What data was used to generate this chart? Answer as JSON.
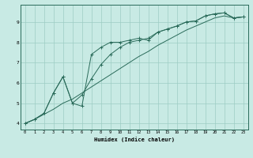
{
  "title": "",
  "xlabel": "Humidex (Indice chaleur)",
  "ylabel": "",
  "bg_color": "#c8eae4",
  "line_color": "#2a6b5a",
  "grid_color": "#9dcdc4",
  "xlim": [
    -0.5,
    23.5
  ],
  "ylim": [
    3.7,
    9.85
  ],
  "xticks": [
    0,
    1,
    2,
    3,
    4,
    5,
    6,
    7,
    8,
    9,
    10,
    11,
    12,
    13,
    14,
    15,
    16,
    17,
    18,
    19,
    20,
    21,
    22,
    23
  ],
  "yticks": [
    4,
    5,
    6,
    7,
    8,
    9
  ],
  "series1": [
    [
      0,
      4.0
    ],
    [
      1,
      4.2
    ],
    [
      2,
      4.5
    ],
    [
      3,
      5.5
    ],
    [
      4,
      6.3
    ],
    [
      5,
      5.0
    ],
    [
      6,
      4.85
    ],
    [
      7,
      7.4
    ],
    [
      8,
      7.75
    ],
    [
      9,
      8.0
    ],
    [
      10,
      8.0
    ],
    [
      11,
      8.1
    ],
    [
      12,
      8.2
    ],
    [
      13,
      8.1
    ],
    [
      14,
      8.5
    ],
    [
      15,
      8.65
    ],
    [
      16,
      8.8
    ],
    [
      17,
      9.0
    ],
    [
      18,
      9.05
    ],
    [
      19,
      9.3
    ],
    [
      20,
      9.4
    ],
    [
      21,
      9.45
    ],
    [
      22,
      9.2
    ],
    [
      23,
      9.25
    ]
  ],
  "series2": [
    [
      0,
      4.0
    ],
    [
      1,
      4.2
    ],
    [
      2,
      4.5
    ],
    [
      3,
      5.5
    ],
    [
      4,
      6.3
    ],
    [
      5,
      5.0
    ],
    [
      6,
      5.4
    ],
    [
      7,
      6.2
    ],
    [
      8,
      6.9
    ],
    [
      9,
      7.4
    ],
    [
      10,
      7.75
    ],
    [
      11,
      8.0
    ],
    [
      12,
      8.1
    ],
    [
      13,
      8.2
    ],
    [
      14,
      8.5
    ],
    [
      15,
      8.65
    ],
    [
      16,
      8.8
    ],
    [
      17,
      9.0
    ],
    [
      18,
      9.05
    ],
    [
      19,
      9.3
    ],
    [
      20,
      9.4
    ],
    [
      21,
      9.45
    ],
    [
      22,
      9.2
    ],
    [
      23,
      9.25
    ]
  ],
  "series3": [
    [
      0,
      4.0
    ],
    [
      1,
      4.2
    ],
    [
      2,
      4.45
    ],
    [
      3,
      4.7
    ],
    [
      4,
      5.0
    ],
    [
      5,
      5.2
    ],
    [
      6,
      5.5
    ],
    [
      7,
      5.8
    ],
    [
      8,
      6.1
    ],
    [
      9,
      6.4
    ],
    [
      10,
      6.7
    ],
    [
      11,
      7.0
    ],
    [
      12,
      7.3
    ],
    [
      13,
      7.55
    ],
    [
      14,
      7.85
    ],
    [
      15,
      8.1
    ],
    [
      16,
      8.35
    ],
    [
      17,
      8.6
    ],
    [
      18,
      8.8
    ],
    [
      19,
      9.0
    ],
    [
      20,
      9.2
    ],
    [
      21,
      9.3
    ],
    [
      22,
      9.2
    ],
    [
      23,
      9.25
    ]
  ]
}
